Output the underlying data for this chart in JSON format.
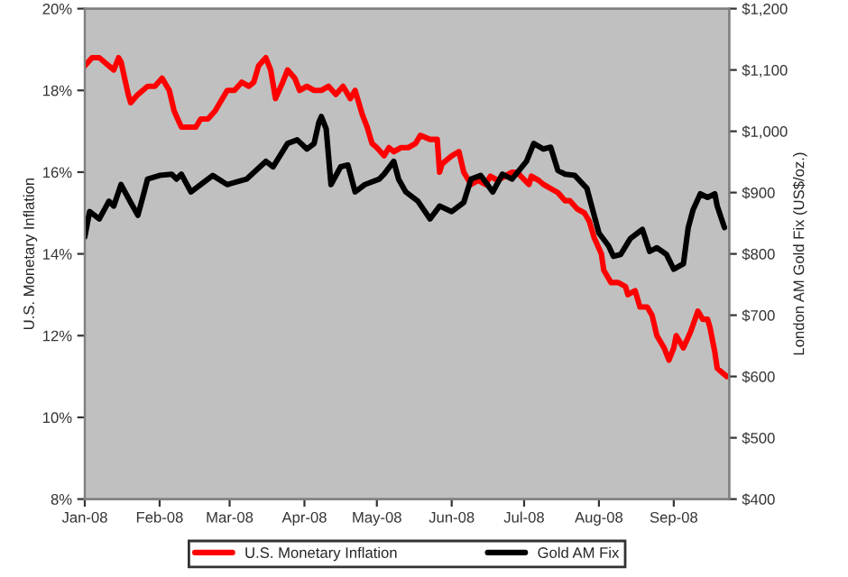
{
  "chart_data": {
    "type": "line",
    "ylabel": "U.S. Monetary Inflation",
    "y2label": "London AM Gold Fix (US$/oz.)",
    "xlim": [
      "2008-01-01",
      "2008-09-24"
    ],
    "xticks": [
      {
        "value": "2008-01-01",
        "label": "Jan-08"
      },
      {
        "value": "2008-02-01",
        "label": "Feb-08"
      },
      {
        "value": "2008-03-01",
        "label": "Mar-08"
      },
      {
        "value": "2008-04-01",
        "label": "Apr-08"
      },
      {
        "value": "2008-05-01",
        "label": "May-08"
      },
      {
        "value": "2008-06-01",
        "label": "Jun-08"
      },
      {
        "value": "2008-07-01",
        "label": "Jul-08"
      },
      {
        "value": "2008-08-01",
        "label": "Aug-08"
      },
      {
        "value": "2008-09-01",
        "label": "Sep-08"
      }
    ],
    "ylim": [
      8,
      20
    ],
    "yticks": [
      {
        "value": 8,
        "label": "8%"
      },
      {
        "value": 10,
        "label": "10%"
      },
      {
        "value": 12,
        "label": "12%"
      },
      {
        "value": 14,
        "label": "14%"
      },
      {
        "value": 16,
        "label": "16%"
      },
      {
        "value": 18,
        "label": "18%"
      },
      {
        "value": 20,
        "label": "20%"
      }
    ],
    "y2lim": [
      400,
      1200
    ],
    "y2ticks": [
      {
        "value": 400,
        "label": "$400"
      },
      {
        "value": 500,
        "label": "$500"
      },
      {
        "value": 600,
        "label": "$600"
      },
      {
        "value": 700,
        "label": "$700"
      },
      {
        "value": 800,
        "label": "$800"
      },
      {
        "value": 900,
        "label": "$900"
      },
      {
        "value": 1000,
        "label": "$1,000"
      },
      {
        "value": 1100,
        "label": "$1,100"
      },
      {
        "value": 1200,
        "label": "$1,200"
      }
    ],
    "grid": false,
    "legend": "bottom",
    "marker": "none",
    "line_style": "solid",
    "series": [
      {
        "name": "U.S. Monetary Inflation",
        "color": "#ff0000",
        "x": [
          "2008-01-01",
          "2008-01-04",
          "2008-01-07",
          "2008-01-11",
          "2008-01-13",
          "2008-01-15",
          "2008-01-16",
          "2008-01-19",
          "2008-01-20",
          "2008-01-23",
          "2008-01-27",
          "2008-01-30",
          "2008-02-02",
          "2008-02-05",
          "2008-02-07",
          "2008-02-10",
          "2008-02-13",
          "2008-02-16",
          "2008-02-18",
          "2008-02-21",
          "2008-02-24",
          "2008-02-27",
          "2008-02-29",
          "2008-03-03",
          "2008-03-06",
          "2008-03-09",
          "2008-03-11",
          "2008-03-13",
          "2008-03-16",
          "2008-03-18",
          "2008-03-20",
          "2008-03-23",
          "2008-03-25",
          "2008-03-28",
          "2008-03-30",
          "2008-04-02",
          "2008-04-05",
          "2008-04-08",
          "2008-04-11",
          "2008-04-14",
          "2008-04-17",
          "2008-04-20",
          "2008-04-22",
          "2008-04-25",
          "2008-04-27",
          "2008-04-29",
          "2008-05-01",
          "2008-05-04",
          "2008-05-06",
          "2008-05-08",
          "2008-05-11",
          "2008-05-14",
          "2008-05-17",
          "2008-05-19",
          "2008-05-23",
          "2008-05-26",
          "2008-05-27",
          "2008-05-28",
          "2008-06-01",
          "2008-06-04",
          "2008-06-06",
          "2008-06-09",
          "2008-06-12",
          "2008-06-15",
          "2008-06-17",
          "2008-06-20",
          "2008-06-23",
          "2008-06-26",
          "2008-06-28",
          "2008-07-03",
          "2008-07-04",
          "2008-07-07",
          "2008-07-09",
          "2008-07-12",
          "2008-07-15",
          "2008-07-18",
          "2008-07-20",
          "2008-07-23",
          "2008-07-26",
          "2008-07-28",
          "2008-07-30",
          "2008-08-02",
          "2008-08-03",
          "2008-08-06",
          "2008-08-09",
          "2008-08-12",
          "2008-08-13",
          "2008-08-16",
          "2008-08-18",
          "2008-08-21",
          "2008-08-23",
          "2008-08-25",
          "2008-08-28",
          "2008-08-30",
          "2008-09-01",
          "2008-09-02",
          "2008-09-03",
          "2008-09-05",
          "2008-09-08",
          "2008-09-11",
          "2008-09-13",
          "2008-09-15",
          "2008-09-16",
          "2008-09-18",
          "2008-09-19",
          "2008-09-21",
          "2008-09-23"
        ],
        "values": [
          18.6,
          18.8,
          18.8,
          18.6,
          18.5,
          18.8,
          18.7,
          17.9,
          17.7,
          17.9,
          18.1,
          18.1,
          18.3,
          18.0,
          17.5,
          17.1,
          17.1,
          17.1,
          17.3,
          17.3,
          17.5,
          17.8,
          18.0,
          18.0,
          18.2,
          18.1,
          18.2,
          18.6,
          18.8,
          18.5,
          17.8,
          18.2,
          18.5,
          18.3,
          18.0,
          18.1,
          18.0,
          18.0,
          18.1,
          17.9,
          18.1,
          17.8,
          18.0,
          17.4,
          17.1,
          16.7,
          16.6,
          16.4,
          16.6,
          16.5,
          16.6,
          16.6,
          16.7,
          16.9,
          16.8,
          16.8,
          16.0,
          16.2,
          16.4,
          16.5,
          16.0,
          15.7,
          15.8,
          15.7,
          15.9,
          15.8,
          15.9,
          16.0,
          16.0,
          15.7,
          15.9,
          15.8,
          15.7,
          15.6,
          15.5,
          15.3,
          15.3,
          15.1,
          15.0,
          14.8,
          14.4,
          14.0,
          13.6,
          13.3,
          13.3,
          13.2,
          13.0,
          13.1,
          12.7,
          12.7,
          12.5,
          12.0,
          11.7,
          11.4,
          11.7,
          12.0,
          11.9,
          11.7,
          12.1,
          12.6,
          12.4,
          12.4,
          12.2,
          11.6,
          11.2,
          11.1,
          11.0
        ]
      },
      {
        "name": "Gold AM Fix",
        "color": "#000000",
        "axis": "y2",
        "x": [
          "2008-01-01",
          "2008-01-03",
          "2008-01-07",
          "2008-01-11",
          "2008-01-13",
          "2008-01-16",
          "2008-01-20",
          "2008-01-23",
          "2008-01-25",
          "2008-01-27",
          "2008-02-01",
          "2008-02-06",
          "2008-02-08",
          "2008-02-10",
          "2008-02-14",
          "2008-02-19",
          "2008-02-23",
          "2008-02-29",
          "2008-03-08",
          "2008-03-16",
          "2008-03-19",
          "2008-03-25",
          "2008-03-29",
          "2008-04-02",
          "2008-04-05",
          "2008-04-07",
          "2008-04-08",
          "2008-04-10",
          "2008-04-12",
          "2008-04-16",
          "2008-04-19",
          "2008-04-22",
          "2008-04-26",
          "2008-05-02",
          "2008-05-04",
          "2008-05-08",
          "2008-05-10",
          "2008-05-13",
          "2008-05-18",
          "2008-05-23",
          "2008-05-27",
          "2008-06-01",
          "2008-06-06",
          "2008-06-09",
          "2008-06-13",
          "2008-06-18",
          "2008-06-22",
          "2008-06-26",
          "2008-07-02",
          "2008-07-05",
          "2008-07-09",
          "2008-07-12",
          "2008-07-15",
          "2008-07-18",
          "2008-07-22",
          "2008-07-27",
          "2008-08-01",
          "2008-08-05",
          "2008-08-07",
          "2008-08-10",
          "2008-08-14",
          "2008-08-17",
          "2008-08-19",
          "2008-08-22",
          "2008-08-25",
          "2008-08-29",
          "2008-09-01",
          "2008-09-05",
          "2008-09-07",
          "2008-09-09",
          "2008-09-12",
          "2008-09-15",
          "2008-09-18",
          "2008-09-19",
          "2008-09-22"
        ],
        "values": [
          828,
          869,
          857,
          886,
          878,
          913,
          884,
          863,
          892,
          922,
          928,
          930,
          922,
          930,
          901,
          916,
          928,
          913,
          922,
          951,
          942,
          980,
          986,
          971,
          980,
          1015,
          1024,
          1004,
          913,
          942,
          945,
          901,
          913,
          922,
          930,
          951,
          922,
          901,
          886,
          857,
          878,
          869,
          884,
          922,
          928,
          901,
          930,
          922,
          951,
          980,
          971,
          974,
          936,
          930,
          928,
          907,
          834,
          813,
          796,
          799,
          825,
          834,
          840,
          804,
          810,
          799,
          775,
          784,
          843,
          872,
          898,
          892,
          898,
          878,
          843
        ]
      }
    ]
  }
}
